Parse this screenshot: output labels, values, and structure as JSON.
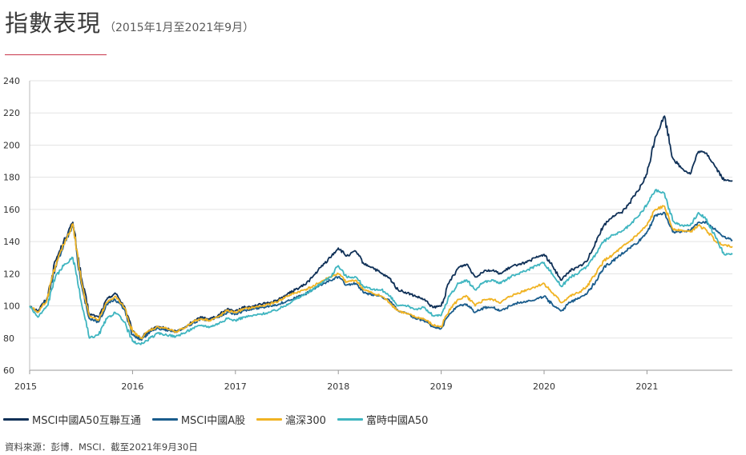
{
  "header": {
    "title": "指數表現",
    "subtitle": "（2015年1月至2021年9月）"
  },
  "footer": {
    "source": "資料來源：彭博．MSCI．截至2021年9月30日"
  },
  "colors": {
    "a50_connect": "#0f3057",
    "china_a": "#1a5c8c",
    "csi300": "#f0b323",
    "ftse_a50": "#3fb5c0",
    "rule": "#c8354a",
    "grid": "#e3e3e3"
  },
  "chart_data": {
    "type": "line",
    "title": "",
    "xlabel": "",
    "ylabel": "",
    "xlim": [
      2015.0,
      2021.83
    ],
    "ylim": [
      60,
      240
    ],
    "yticks": [
      60,
      80,
      100,
      120,
      140,
      160,
      180,
      200,
      220,
      240
    ],
    "xticks": [
      "2015",
      "2016",
      "2017",
      "2018",
      "2019",
      "2020",
      "2021"
    ],
    "grid": true,
    "legend_position": "bottom",
    "x": [
      2015.0,
      2015.08,
      2015.17,
      2015.25,
      2015.33,
      2015.42,
      2015.5,
      2015.58,
      2015.67,
      2015.75,
      2015.83,
      2015.92,
      2016.0,
      2016.08,
      2016.17,
      2016.25,
      2016.33,
      2016.42,
      2016.5,
      2016.58,
      2016.67,
      2016.75,
      2016.83,
      2016.92,
      2017.0,
      2017.08,
      2017.17,
      2017.25,
      2017.33,
      2017.42,
      2017.5,
      2017.58,
      2017.67,
      2017.75,
      2017.83,
      2017.92,
      2018.0,
      2018.08,
      2018.17,
      2018.25,
      2018.33,
      2018.42,
      2018.5,
      2018.58,
      2018.67,
      2018.75,
      2018.83,
      2018.92,
      2019.0,
      2019.08,
      2019.17,
      2019.25,
      2019.33,
      2019.42,
      2019.5,
      2019.58,
      2019.67,
      2019.75,
      2019.83,
      2019.92,
      2020.0,
      2020.08,
      2020.17,
      2020.25,
      2020.33,
      2020.42,
      2020.5,
      2020.58,
      2020.67,
      2020.75,
      2020.83,
      2020.92,
      2021.0,
      2021.08,
      2021.17,
      2021.25,
      2021.33,
      2021.42,
      2021.5,
      2021.58,
      2021.67,
      2021.75,
      2021.83
    ],
    "series": [
      {
        "name": "MSCI中國A50互聯互通",
        "color_key": "a50_connect",
        "values": [
          100,
          97,
          105,
          128,
          140,
          152,
          118,
          95,
          93,
          104,
          108,
          100,
          84,
          80,
          85,
          87,
          86,
          84,
          86,
          90,
          93,
          92,
          94,
          98,
          97,
          99,
          100,
          101,
          102,
          104,
          107,
          110,
          113,
          118,
          124,
          130,
          136,
          131,
          134,
          126,
          124,
          120,
          117,
          110,
          108,
          106,
          104,
          99,
          100,
          115,
          124,
          126,
          118,
          122,
          122,
          120,
          124,
          126,
          127,
          130,
          132,
          125,
          116,
          122,
          124,
          128,
          140,
          150,
          156,
          158,
          164,
          172,
          182,
          205,
          218,
          192,
          186,
          182,
          196,
          195,
          186,
          178,
          178
        ]
      },
      {
        "name": "MSCI中國A股",
        "color_key": "china_a",
        "values": [
          100,
          96,
          104,
          124,
          138,
          150,
          114,
          92,
          90,
          101,
          104,
          98,
          82,
          79,
          84,
          86,
          85,
          84,
          86,
          89,
          92,
          91,
          93,
          96,
          95,
          97,
          98,
          99,
          100,
          101,
          103,
          105,
          107,
          110,
          113,
          116,
          118,
          113,
          114,
          108,
          107,
          106,
          103,
          97,
          95,
          92,
          91,
          87,
          86,
          95,
          100,
          101,
          96,
          99,
          99,
          97,
          100,
          102,
          103,
          104,
          106,
          101,
          97,
          102,
          105,
          108,
          115,
          124,
          128,
          132,
          136,
          140,
          146,
          156,
          158,
          146,
          146,
          147,
          152,
          152,
          147,
          143,
          141
        ]
      },
      {
        "name": "滬深300",
        "color_key": "csi300",
        "values": [
          100,
          96,
          104,
          125,
          138,
          151,
          116,
          94,
          91,
          102,
          106,
          99,
          84,
          80,
          85,
          87,
          86,
          84,
          86,
          90,
          92,
          91,
          93,
          97,
          96,
          98,
          99,
          100,
          101,
          103,
          106,
          108,
          110,
          112,
          115,
          118,
          120,
          115,
          116,
          110,
          108,
          106,
          102,
          97,
          95,
          93,
          92,
          88,
          87,
          98,
          104,
          106,
          100,
          104,
          104,
          102,
          106,
          108,
          110,
          112,
          114,
          108,
          102,
          106,
          108,
          112,
          120,
          128,
          132,
          136,
          140,
          145,
          150,
          160,
          162,
          148,
          147,
          146,
          150,
          147,
          140,
          138,
          137
        ]
      },
      {
        "name": "富時中國A50",
        "color_key": "ftse_a50",
        "values": [
          100,
          93,
          100,
          118,
          125,
          130,
          103,
          80,
          82,
          92,
          96,
          90,
          78,
          76,
          80,
          83,
          82,
          81,
          83,
          86,
          88,
          87,
          89,
          92,
          91,
          93,
          94,
          95,
          96,
          98,
          101,
          104,
          107,
          110,
          114,
          118,
          125,
          118,
          118,
          112,
          110,
          110,
          106,
          100,
          100,
          98,
          99,
          94,
          94,
          106,
          114,
          116,
          110,
          115,
          116,
          114,
          118,
          120,
          122,
          125,
          127,
          120,
          112,
          118,
          120,
          125,
          132,
          140,
          144,
          146,
          150,
          156,
          163,
          172,
          170,
          153,
          150,
          150,
          158,
          154,
          142,
          132,
          132
        ]
      }
    ]
  }
}
